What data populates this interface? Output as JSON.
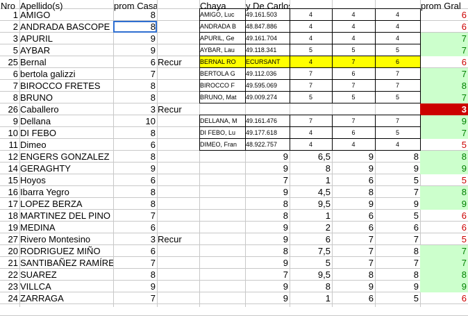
{
  "headers": {
    "nro": "Nro",
    "apellido": "Apellido(s)",
    "prom_casas": "prom Casas",
    "chaya": "Chaya",
    "de_carlos": "y De Carlos",
    "prom_gral": "prom Gral"
  },
  "rows": [
    {
      "nro": "1",
      "name": "AMIGO",
      "casas": "8",
      "recur": "",
      "alumno": "AMIGO, Luc",
      "dni": "49.161.503",
      "g1": "4",
      "g2": "4",
      "g3": "4",
      "n1": "",
      "n2": "",
      "n3": "",
      "n4": "",
      "gral": "6",
      "gral_style": "red"
    },
    {
      "nro": "2",
      "name": "ANDRADA BASCOPE",
      "casas": "8",
      "recur": "",
      "alumno": "ANDRADA B",
      "dni": "48.847.886",
      "g1": "4",
      "g2": "4",
      "g3": "4",
      "n1": "",
      "n2": "",
      "n3": "",
      "n4": "",
      "gral": "6",
      "gral_style": "red"
    },
    {
      "nro": "3",
      "name": "APURIL",
      "casas": "9",
      "recur": "",
      "alumno": "APURIL, Ge",
      "dni": "49.161.704",
      "g1": "4",
      "g2": "4",
      "g3": "4",
      "n1": "",
      "n2": "",
      "n3": "",
      "n4": "",
      "gral": "7",
      "gral_style": "green"
    },
    {
      "nro": "5",
      "name": "AYBAR",
      "casas": "9",
      "recur": "",
      "alumno": "AYBAR, Lau",
      "dni": "49.118.341",
      "g1": "5",
      "g2": "5",
      "g3": "5",
      "n1": "",
      "n2": "",
      "n3": "",
      "n4": "",
      "gral": "7",
      "gral_style": "green"
    },
    {
      "nro": "25",
      "name": "Bernal",
      "casas": "6",
      "recur": "Recur",
      "alumno": "BERNAL RO",
      "dni": "ECURSANT",
      "g1": "4",
      "g2": "7",
      "g3": "6",
      "n1": "",
      "n2": "",
      "n3": "",
      "n4": "",
      "gral": "6",
      "gral_style": "red",
      "highlight": true
    },
    {
      "nro": "6",
      "name": "bertola galizzi",
      "casas": "7",
      "recur": "",
      "alumno": "BERTOLA G",
      "dni": "49.112.036",
      "g1": "7",
      "g2": "6",
      "g3": "7",
      "n1": "",
      "n2": "",
      "n3": "",
      "n4": "",
      "gral": "7",
      "gral_style": "green"
    },
    {
      "nro": "7",
      "name": "BIROCCO FRETES",
      "casas": "8",
      "recur": "",
      "alumno": "BIROCCO F",
      "dni": "49.595.069",
      "g1": "7",
      "g2": "7",
      "g3": "7",
      "n1": "",
      "n2": "",
      "n3": "",
      "n4": "",
      "gral": "8",
      "gral_style": "green"
    },
    {
      "nro": "8",
      "name": "BRUNO",
      "casas": "8",
      "recur": "",
      "alumno": "BRUNO, Mat",
      "dni": "49.009.274",
      "g1": "5",
      "g2": "5",
      "g3": "5",
      "n1": "",
      "n2": "",
      "n3": "",
      "n4": "",
      "gral": "7",
      "gral_style": "green"
    },
    {
      "nro": "26",
      "name": "Caballero",
      "casas": "3",
      "recur": "Recur",
      "alumno": "",
      "dni": "",
      "g1": "",
      "g2": "",
      "g3": "",
      "n1": "",
      "n2": "",
      "n3": "",
      "n4": "",
      "gral": "3",
      "gral_style": "redbg"
    },
    {
      "nro": "9",
      "name": "Dellana",
      "casas": "10",
      "recur": "",
      "alumno": "DELLANA, M",
      "dni": "49.161.476",
      "g1": "7",
      "g2": "7",
      "g3": "7",
      "n1": "",
      "n2": "",
      "n3": "",
      "n4": "",
      "gral": "9",
      "gral_style": "green"
    },
    {
      "nro": "10",
      "name": "DI FEBO",
      "casas": "8",
      "recur": "",
      "alumno": "DI FEBO, Lu",
      "dni": "49.177.618",
      "g1": "4",
      "g2": "6",
      "g3": "5",
      "n1": "",
      "n2": "",
      "n3": "",
      "n4": "",
      "gral": "7",
      "gral_style": "green"
    },
    {
      "nro": "11",
      "name": "Dimeo",
      "casas": "6",
      "recur": "",
      "alumno": "DIMEO, Fran",
      "dni": "48.922.757",
      "g1": "4",
      "g2": "4",
      "g3": "4",
      "n1": "",
      "n2": "",
      "n3": "",
      "n4": "",
      "gral": "5",
      "gral_style": "red"
    },
    {
      "nro": "12",
      "name": "ENGERS GONZALEZ",
      "casas": "8",
      "recur": "",
      "alumno": "",
      "dni": "",
      "g1": "",
      "g2": "",
      "g3": "",
      "n1": "9",
      "n2": "6,5",
      "n3": "9",
      "n4": "8",
      "gral": "8",
      "gral_style": "green"
    },
    {
      "nro": "14",
      "name": "GERAGHTY",
      "casas": "9",
      "recur": "",
      "alumno": "",
      "dni": "",
      "g1": "",
      "g2": "",
      "g3": "",
      "n1": "9",
      "n2": "8",
      "n3": "9",
      "n4": "9",
      "gral": "9",
      "gral_style": "green"
    },
    {
      "nro": "15",
      "name": "Hoyos",
      "casas": "6",
      "recur": "",
      "alumno": "",
      "dni": "",
      "g1": "",
      "g2": "",
      "g3": "",
      "n1": "7",
      "n2": "1",
      "n3": "6",
      "n4": "5",
      "gral": "5",
      "gral_style": "red"
    },
    {
      "nro": "16",
      "name": "Ibarra Yegro",
      "casas": "8",
      "recur": "",
      "alumno": "",
      "dni": "",
      "g1": "",
      "g2": "",
      "g3": "",
      "n1": "9",
      "n2": "4,5",
      "n3": "8",
      "n4": "7",
      "gral": "8",
      "gral_style": "green"
    },
    {
      "nro": "17",
      "name": "LOPEZ BERZA",
      "casas": "8",
      "recur": "",
      "alumno": "",
      "dni": "",
      "g1": "",
      "g2": "",
      "g3": "",
      "n1": "8",
      "n2": "9,5",
      "n3": "9",
      "n4": "9",
      "gral": "9",
      "gral_style": "green"
    },
    {
      "nro": "18",
      "name": "MARTINEZ DEL PINO",
      "casas": "7",
      "recur": "",
      "alumno": "",
      "dni": "",
      "g1": "",
      "g2": "",
      "g3": "",
      "n1": "8",
      "n2": "1",
      "n3": "6",
      "n4": "5",
      "gral": "6",
      "gral_style": "red"
    },
    {
      "nro": "19",
      "name": "MEDINA",
      "casas": "6",
      "recur": "",
      "alumno": "",
      "dni": "",
      "g1": "",
      "g2": "",
      "g3": "",
      "n1": "9",
      "n2": "2",
      "n3": "6",
      "n4": "6",
      "gral": "6",
      "gral_style": "red"
    },
    {
      "nro": "27",
      "name": "Rivero  Montesino",
      "casas": "3",
      "recur": "Recur",
      "alumno": "",
      "dni": "",
      "g1": "",
      "g2": "",
      "g3": "",
      "n1": "9",
      "n2": "6",
      "n3": "7",
      "n4": "7",
      "gral": "5",
      "gral_style": "red"
    },
    {
      "nro": "20",
      "name": "RODRIGUEZ MIÑO",
      "casas": "6",
      "recur": "",
      "alumno": "",
      "dni": "",
      "g1": "",
      "g2": "",
      "g3": "",
      "n1": "8",
      "n2": "7,5",
      "n3": "7",
      "n4": "8",
      "gral": "7",
      "gral_style": "green"
    },
    {
      "nro": "21",
      "name": "SANTIBAÑEZ RAMÍREZ",
      "casas": "7",
      "recur": "",
      "alumno": "",
      "dni": "",
      "g1": "",
      "g2": "",
      "g3": "",
      "n1": "9",
      "n2": "5",
      "n3": "7",
      "n4": "7",
      "gral": "7",
      "gral_style": "green"
    },
    {
      "nro": "22",
      "name": "SUAREZ",
      "casas": "8",
      "recur": "",
      "alumno": "",
      "dni": "",
      "g1": "",
      "g2": "",
      "g3": "",
      "n1": "7",
      "n2": "9,5",
      "n3": "8",
      "n4": "8",
      "gral": "8",
      "gral_style": "green"
    },
    {
      "nro": "23",
      "name": "VILLCA",
      "casas": "9",
      "recur": "",
      "alumno": "",
      "dni": "",
      "g1": "",
      "g2": "",
      "g3": "",
      "n1": "9",
      "n2": "8",
      "n3": "9",
      "n4": "9",
      "gral": "9",
      "gral_style": "green"
    },
    {
      "nro": "24",
      "name": "ZARRAGA",
      "casas": "7",
      "recur": "",
      "alumno": "",
      "dni": "",
      "g1": "",
      "g2": "",
      "g3": "",
      "n1": "9",
      "n2": "1",
      "n3": "6",
      "n4": "5",
      "gral": "6",
      "gral_style": "red"
    }
  ],
  "colors": {
    "green_fill": "#ccffcc",
    "red_fill": "#cc0000",
    "highlight": "#ffff00",
    "red_text": "#cc0000",
    "green_text": "#008000",
    "selection": "#2f6fd1"
  },
  "selected_cell": "prom Casas / ANDRADA BASCOPE"
}
